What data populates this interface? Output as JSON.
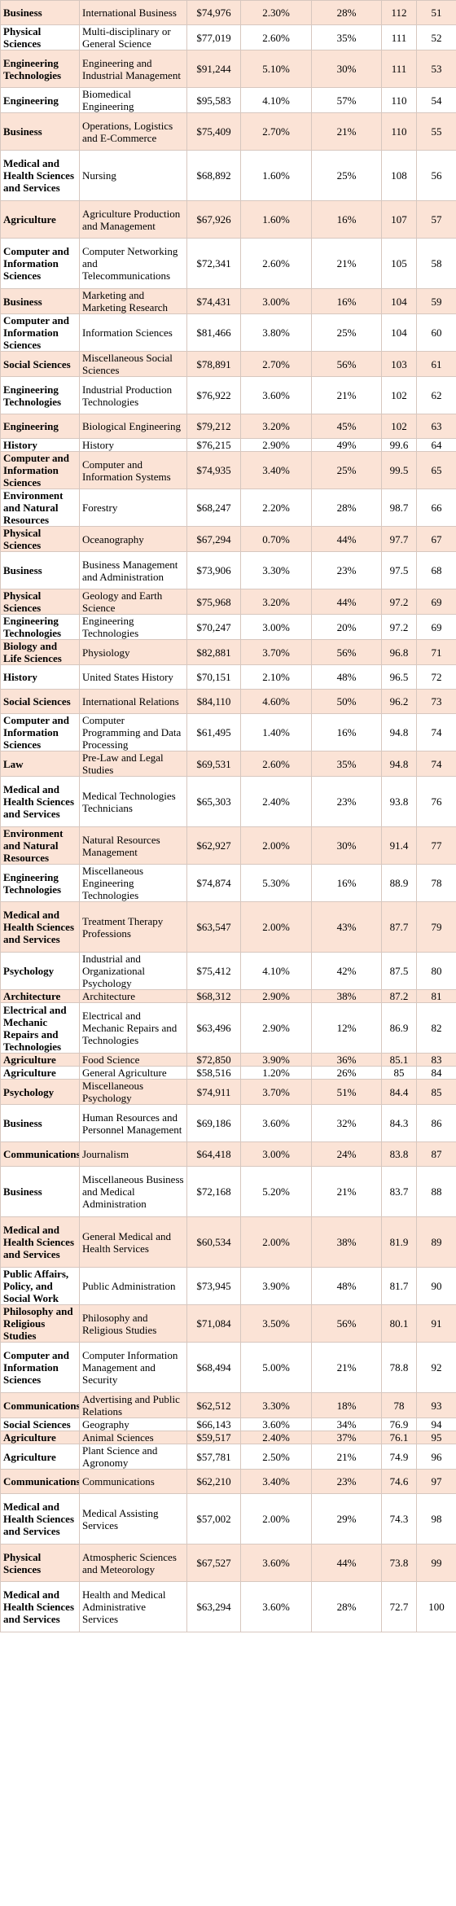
{
  "rows": [
    {
      "category": "Business",
      "major": "International Business",
      "salary": "$74,976",
      "unemployment": "2.30%",
      "women": "28%",
      "score": "112",
      "rank": "51",
      "shaded": true
    },
    {
      "category": "Physical Sciences",
      "major": "Multi-disciplinary or General Science",
      "salary": "$77,019",
      "unemployment": "2.60%",
      "women": "35%",
      "score": "111",
      "rank": "52",
      "shaded": false
    },
    {
      "category": "Engineering Technologies",
      "major": "Engineering and Industrial Management",
      "salary": "$91,244",
      "unemployment": "5.10%",
      "women": "30%",
      "score": "111",
      "rank": "53",
      "shaded": true
    },
    {
      "category": "Engineering",
      "major": "Biomedical Engineering",
      "salary": "$95,583",
      "unemployment": "4.10%",
      "women": "57%",
      "score": "110",
      "rank": "54",
      "shaded": false
    },
    {
      "category": "Business",
      "major": "Operations, Logistics and E-Commerce",
      "salary": "$75,409",
      "unemployment": "2.70%",
      "women": "21%",
      "score": "110",
      "rank": "55",
      "shaded": true
    },
    {
      "category": "Medical and Health Sciences and Services",
      "major": "Nursing",
      "salary": "$68,892",
      "unemployment": "1.60%",
      "women": "25%",
      "score": "108",
      "rank": "56",
      "shaded": false
    },
    {
      "category": "Agriculture",
      "major": "Agriculture Production and Management",
      "salary": "$67,926",
      "unemployment": "1.60%",
      "women": "16%",
      "score": "107",
      "rank": "57",
      "shaded": true
    },
    {
      "category": "Computer and Information Sciences",
      "major": "Computer Networking and Telecommunications",
      "salary": "$72,341",
      "unemployment": "2.60%",
      "women": "21%",
      "score": "105",
      "rank": "58",
      "shaded": false
    },
    {
      "category": "Business",
      "major": "Marketing and Marketing Research",
      "salary": "$74,431",
      "unemployment": "3.00%",
      "women": "16%",
      "score": "104",
      "rank": "59",
      "shaded": true
    },
    {
      "category": "Computer and Information Sciences",
      "major": "Information Sciences",
      "salary": "$81,466",
      "unemployment": "3.80%",
      "women": "25%",
      "score": "104",
      "rank": "60",
      "shaded": false
    },
    {
      "category": "Social Sciences",
      "major": "Miscellaneous Social Sciences",
      "salary": "$78,891",
      "unemployment": "2.70%",
      "women": "56%",
      "score": "103",
      "rank": "61",
      "shaded": true
    },
    {
      "category": "Engineering Technologies",
      "major": "Industrial Production Technologies",
      "salary": "$76,922",
      "unemployment": "3.60%",
      "women": "21%",
      "score": "102",
      "rank": "62",
      "shaded": false
    },
    {
      "category": "Engineering",
      "major": "Biological Engineering",
      "salary": "$79,212",
      "unemployment": "3.20%",
      "women": "45%",
      "score": "102",
      "rank": "63",
      "shaded": true
    },
    {
      "category": "History",
      "major": "History",
      "salary": "$76,215",
      "unemployment": "2.90%",
      "women": "49%",
      "score": "99.6",
      "rank": "64",
      "shaded": false
    },
    {
      "category": "Computer and Information Sciences",
      "major": "Computer and Information Systems",
      "salary": "$74,935",
      "unemployment": "3.40%",
      "women": "25%",
      "score": "99.5",
      "rank": "65",
      "shaded": true
    },
    {
      "category": "Environment and Natural Resources",
      "major": "Forestry",
      "salary": "$68,247",
      "unemployment": "2.20%",
      "women": "28%",
      "score": "98.7",
      "rank": "66",
      "shaded": false
    },
    {
      "category": "Physical Sciences",
      "major": "Oceanography",
      "salary": "$67,294",
      "unemployment": "0.70%",
      "women": "44%",
      "score": "97.7",
      "rank": "67",
      "shaded": true
    },
    {
      "category": "Business",
      "major": "Business Management and Administration",
      "salary": "$73,906",
      "unemployment": "3.30%",
      "women": "23%",
      "score": "97.5",
      "rank": "68",
      "shaded": false
    },
    {
      "category": "Physical Sciences",
      "major": "Geology and Earth Science",
      "salary": "$75,968",
      "unemployment": "3.20%",
      "women": "44%",
      "score": "97.2",
      "rank": "69",
      "shaded": true
    },
    {
      "category": "Engineering Technologies",
      "major": "Engineering Technologies",
      "salary": "$70,247",
      "unemployment": "3.00%",
      "women": "20%",
      "score": "97.2",
      "rank": "69",
      "shaded": false
    },
    {
      "category": "Biology and Life Sciences",
      "major": "Physiology",
      "salary": "$82,881",
      "unemployment": "3.70%",
      "women": "56%",
      "score": "96.8",
      "rank": "71",
      "shaded": true
    },
    {
      "category": "History",
      "major": "United States History",
      "salary": "$70,151",
      "unemployment": "2.10%",
      "women": "48%",
      "score": "96.5",
      "rank": "72",
      "shaded": false
    },
    {
      "category": "Social Sciences",
      "major": "International Relations",
      "salary": "$84,110",
      "unemployment": "4.60%",
      "women": "50%",
      "score": "96.2",
      "rank": "73",
      "shaded": true
    },
    {
      "category": "Computer and Information Sciences",
      "major": "Computer Programming and Data Processing",
      "salary": "$61,495",
      "unemployment": "1.40%",
      "women": "16%",
      "score": "94.8",
      "rank": "74",
      "shaded": false
    },
    {
      "category": "Law",
      "major": "Pre-Law and Legal Studies",
      "salary": "$69,531",
      "unemployment": "2.60%",
      "women": "35%",
      "score": "94.8",
      "rank": "74",
      "shaded": true
    },
    {
      "category": "Medical and Health Sciences and Services",
      "major": "Medical Technologies Technicians",
      "salary": "$65,303",
      "unemployment": "2.40%",
      "women": "23%",
      "score": "93.8",
      "rank": "76",
      "shaded": false
    },
    {
      "category": "Environment and Natural Resources",
      "major": "Natural Resources Management",
      "salary": "$62,927",
      "unemployment": "2.00%",
      "women": "30%",
      "score": "91.4",
      "rank": "77",
      "shaded": true
    },
    {
      "category": "Engineering Technologies",
      "major": "Miscellaneous Engineering Technologies",
      "salary": "$74,874",
      "unemployment": "5.30%",
      "women": "16%",
      "score": "88.9",
      "rank": "78",
      "shaded": false
    },
    {
      "category": "Medical and Health Sciences and Services",
      "major": "Treatment Therapy Professions",
      "salary": "$63,547",
      "unemployment": "2.00%",
      "women": "43%",
      "score": "87.7",
      "rank": "79",
      "shaded": true
    },
    {
      "category": "Psychology",
      "major": "Industrial and Organizational Psychology",
      "salary": "$75,412",
      "unemployment": "4.10%",
      "women": "42%",
      "score": "87.5",
      "rank": "80",
      "shaded": false
    },
    {
      "category": "Architecture",
      "major": "Architecture",
      "salary": "$68,312",
      "unemployment": "2.90%",
      "women": "38%",
      "score": "87.2",
      "rank": "81",
      "shaded": true
    },
    {
      "category": "Electrical and Mechanic Repairs and Technologies",
      "major": "Electrical and Mechanic Repairs and Technologies",
      "salary": "$63,496",
      "unemployment": "2.90%",
      "women": "12%",
      "score": "86.9",
      "rank": "82",
      "shaded": false
    },
    {
      "category": "Agriculture",
      "major": "Food Science",
      "salary": "$72,850",
      "unemployment": "3.90%",
      "women": "36%",
      "score": "85.1",
      "rank": "83",
      "shaded": true
    },
    {
      "category": "Agriculture",
      "major": "General Agriculture",
      "salary": "$58,516",
      "unemployment": "1.20%",
      "women": "26%",
      "score": "85",
      "rank": "84",
      "shaded": false
    },
    {
      "category": "Psychology",
      "major": "Miscellaneous Psychology",
      "salary": "$74,911",
      "unemployment": "3.70%",
      "women": "51%",
      "score": "84.4",
      "rank": "85",
      "shaded": true
    },
    {
      "category": "Business",
      "major": "Human Resources and Personnel Management",
      "salary": "$69,186",
      "unemployment": "3.60%",
      "women": "32%",
      "score": "84.3",
      "rank": "86",
      "shaded": false
    },
    {
      "category": "Communications",
      "major": "Journalism",
      "salary": "$64,418",
      "unemployment": "3.00%",
      "women": "24%",
      "score": "83.8",
      "rank": "87",
      "shaded": true
    },
    {
      "category": "Business",
      "major": "Miscellaneous Business and Medical Administration",
      "salary": "$72,168",
      "unemployment": "5.20%",
      "women": "21%",
      "score": "83.7",
      "rank": "88",
      "shaded": false
    },
    {
      "category": "Medical and Health Sciences and Services",
      "major": "General Medical and Health Services",
      "salary": "$60,534",
      "unemployment": "2.00%",
      "women": "38%",
      "score": "81.9",
      "rank": "89",
      "shaded": true
    },
    {
      "category": "Public Affairs, Policy, and Social Work",
      "major": "Public Administration",
      "salary": "$73,945",
      "unemployment": "3.90%",
      "women": "48%",
      "score": "81.7",
      "rank": "90",
      "shaded": false
    },
    {
      "category": "Philosophy and Religious Studies",
      "major": "Philosophy and Religious Studies",
      "salary": "$71,084",
      "unemployment": "3.50%",
      "women": "56%",
      "score": "80.1",
      "rank": "91",
      "shaded": true
    },
    {
      "category": "Computer and Information Sciences",
      "major": "Computer Information Management and Security",
      "salary": "$68,494",
      "unemployment": "5.00%",
      "women": "21%",
      "score": "78.8",
      "rank": "92",
      "shaded": false
    },
    {
      "category": "Communications",
      "major": "Advertising and Public Relations",
      "salary": "$62,512",
      "unemployment": "3.30%",
      "women": "18%",
      "score": "78",
      "rank": "93",
      "shaded": true
    },
    {
      "category": "Social Sciences",
      "major": "Geography",
      "salary": "$66,143",
      "unemployment": "3.60%",
      "women": "34%",
      "score": "76.9",
      "rank": "94",
      "shaded": false
    },
    {
      "category": "Agriculture",
      "major": "Animal Sciences",
      "salary": "$59,517",
      "unemployment": "2.40%",
      "women": "37%",
      "score": "76.1",
      "rank": "95",
      "shaded": true
    },
    {
      "category": "Agriculture",
      "major": "Plant Science and Agronomy",
      "salary": "$57,781",
      "unemployment": "2.50%",
      "women": "21%",
      "score": "74.9",
      "rank": "96",
      "shaded": false
    },
    {
      "category": "Communications",
      "major": "Communications",
      "salary": "$62,210",
      "unemployment": "3.40%",
      "women": "23%",
      "score": "74.6",
      "rank": "97",
      "shaded": true
    },
    {
      "category": "Medical and Health Sciences and Services",
      "major": "Medical Assisting Services",
      "salary": "$57,002",
      "unemployment": "2.00%",
      "women": "29%",
      "score": "74.3",
      "rank": "98",
      "shaded": false
    },
    {
      "category": "Physical Sciences",
      "major": "Atmospheric Sciences and Meteorology",
      "salary": "$67,527",
      "unemployment": "3.60%",
      "women": "44%",
      "score": "73.8",
      "rank": "99",
      "shaded": true
    },
    {
      "category": "Medical and Health Sciences and Services",
      "major": "Health and Medical Administrative Services",
      "salary": "$63,294",
      "unemployment": "3.60%",
      "women": "28%",
      "score": "72.7",
      "rank": "100",
      "shaded": false
    }
  ]
}
